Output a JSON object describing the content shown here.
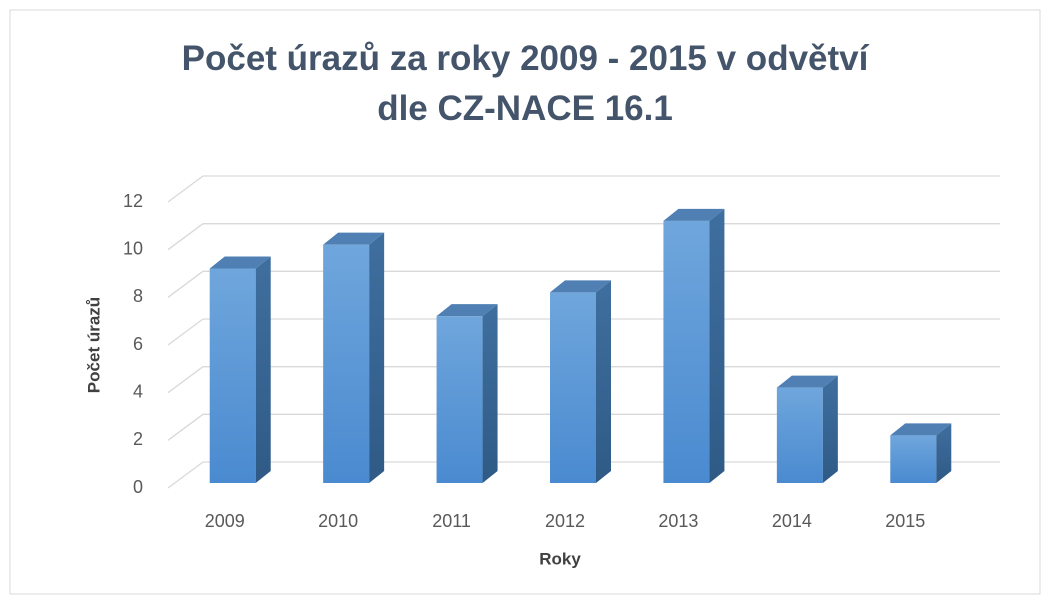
{
  "chart_data": {
    "type": "bar",
    "title": "Počet úrazů za roky 2009 - 2015 v odvětví dle CZ-NACE 16.1",
    "x_label": "Roky",
    "y_label": "Počet úrazů",
    "categories": [
      "2009",
      "2010",
      "2011",
      "2012",
      "2013",
      "2014",
      "2015"
    ],
    "values": [
      9,
      10,
      7,
      8,
      11,
      4,
      2
    ],
    "color": "#5b9bd5",
    "ylim": [
      0,
      12
    ],
    "yticks": [
      0,
      2,
      4,
      6,
      8,
      10,
      12
    ],
    "grid": true
  }
}
